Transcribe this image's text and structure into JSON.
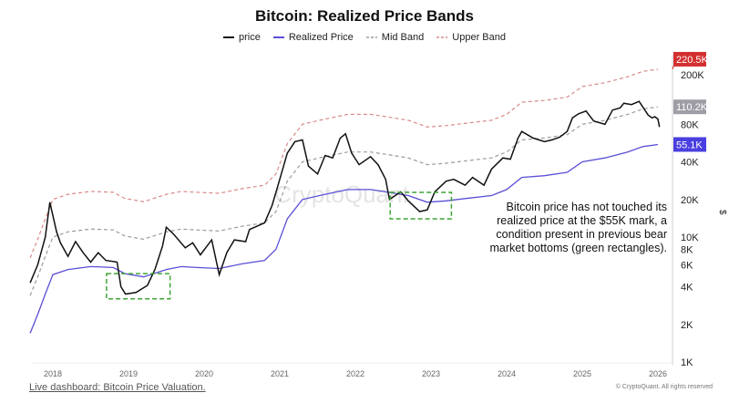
{
  "chart_data": {
    "type": "line",
    "title": "Bitcoin: Realized Price Bands",
    "legend": [
      "price",
      "Realized Price",
      "Mid Band",
      "Upper Band"
    ],
    "legend_position": "top",
    "y_scale": "log",
    "ylabel": "$",
    "ylim": [
      1000,
      260000
    ],
    "xlim": [
      2017.6,
      2026.15
    ],
    "y_ticks": [
      {
        "v": 1000,
        "l": "1K"
      },
      {
        "v": 2000,
        "l": "2K"
      },
      {
        "v": 4000,
        "l": "4K"
      },
      {
        "v": 6000,
        "l": "6K"
      },
      {
        "v": 8000,
        "l": "8K"
      },
      {
        "v": 10000,
        "l": "10K"
      },
      {
        "v": 20000,
        "l": "20K"
      },
      {
        "v": 40000,
        "l": "40K"
      },
      {
        "v": 80000,
        "l": "80K"
      },
      {
        "v": 200000,
        "l": "200K"
      }
    ],
    "x_ticks": [
      "2018",
      "2019",
      "2020",
      "2021",
      "2022",
      "2023",
      "2024",
      "2025",
      "2026"
    ],
    "colors": {
      "price": "#111111",
      "realized": "#5b4fd6",
      "mid": "#a09a9a",
      "upper": "#d98a8a",
      "box": "#3fa535"
    },
    "series": [
      {
        "name": "price",
        "points": [
          [
            2017.7,
            4300
          ],
          [
            2017.8,
            6000
          ],
          [
            2017.9,
            10000
          ],
          [
            2017.96,
            19000
          ],
          [
            2018.05,
            11000
          ],
          [
            2018.1,
            9000
          ],
          [
            2018.2,
            7000
          ],
          [
            2018.3,
            9200
          ],
          [
            2018.4,
            7500
          ],
          [
            2018.5,
            6300
          ],
          [
            2018.6,
            7500
          ],
          [
            2018.7,
            6500
          ],
          [
            2018.85,
            6300
          ],
          [
            2018.9,
            4000
          ],
          [
            2018.96,
            3500
          ],
          [
            2019.1,
            3600
          ],
          [
            2019.25,
            4100
          ],
          [
            2019.35,
            5500
          ],
          [
            2019.45,
            8500
          ],
          [
            2019.5,
            12000
          ],
          [
            2019.6,
            10500
          ],
          [
            2019.75,
            8200
          ],
          [
            2019.85,
            9000
          ],
          [
            2019.95,
            7200
          ],
          [
            2020.1,
            9500
          ],
          [
            2020.2,
            5000
          ],
          [
            2020.3,
            7500
          ],
          [
            2020.4,
            9500
          ],
          [
            2020.55,
            9200
          ],
          [
            2020.6,
            11500
          ],
          [
            2020.8,
            13000
          ],
          [
            2020.9,
            18000
          ],
          [
            2021.0,
            29000
          ],
          [
            2021.1,
            47000
          ],
          [
            2021.2,
            58000
          ],
          [
            2021.3,
            60000
          ],
          [
            2021.38,
            37000
          ],
          [
            2021.5,
            32000
          ],
          [
            2021.6,
            45000
          ],
          [
            2021.7,
            43000
          ],
          [
            2021.8,
            62000
          ],
          [
            2021.87,
            67000
          ],
          [
            2021.95,
            47000
          ],
          [
            2022.05,
            38000
          ],
          [
            2022.2,
            44000
          ],
          [
            2022.3,
            38000
          ],
          [
            2022.4,
            29000
          ],
          [
            2022.45,
            20000
          ],
          [
            2022.6,
            23000
          ],
          [
            2022.7,
            19500
          ],
          [
            2022.85,
            16000
          ],
          [
            2022.95,
            16500
          ],
          [
            2023.05,
            23000
          ],
          [
            2023.2,
            28000
          ],
          [
            2023.3,
            29000
          ],
          [
            2023.45,
            26000
          ],
          [
            2023.55,
            30000
          ],
          [
            2023.7,
            26000
          ],
          [
            2023.8,
            35000
          ],
          [
            2023.95,
            43000
          ],
          [
            2024.05,
            42000
          ],
          [
            2024.15,
            62000
          ],
          [
            2024.2,
            70000
          ],
          [
            2024.35,
            62000
          ],
          [
            2024.5,
            58000
          ],
          [
            2024.6,
            60000
          ],
          [
            2024.7,
            63000
          ],
          [
            2024.8,
            70000
          ],
          [
            2024.87,
            90000
          ],
          [
            2024.95,
            97000
          ],
          [
            2025.05,
            102000
          ],
          [
            2025.15,
            85000
          ],
          [
            2025.3,
            80000
          ],
          [
            2025.4,
            104000
          ],
          [
            2025.5,
            108000
          ],
          [
            2025.55,
            118000
          ],
          [
            2025.65,
            115000
          ],
          [
            2025.75,
            122000
          ],
          [
            2025.8,
            110000
          ],
          [
            2025.87,
            95000
          ],
          [
            2025.92,
            90000
          ],
          [
            2025.96,
            92000
          ],
          [
            2026.0,
            88000
          ],
          [
            2026.02,
            76000
          ]
        ]
      },
      {
        "name": "Realized Price",
        "points": [
          [
            2017.7,
            1700
          ],
          [
            2017.8,
            2400
          ],
          [
            2017.9,
            3500
          ],
          [
            2018.0,
            5000
          ],
          [
            2018.2,
            5500
          ],
          [
            2018.5,
            5800
          ],
          [
            2018.8,
            5700
          ],
          [
            2018.95,
            5100
          ],
          [
            2019.2,
            4800
          ],
          [
            2019.5,
            5500
          ],
          [
            2019.7,
            5800
          ],
          [
            2019.9,
            5700
          ],
          [
            2020.2,
            5600
          ],
          [
            2020.5,
            6100
          ],
          [
            2020.8,
            6500
          ],
          [
            2020.95,
            8000
          ],
          [
            2021.1,
            14000
          ],
          [
            2021.3,
            20000
          ],
          [
            2021.6,
            22000
          ],
          [
            2021.9,
            24000
          ],
          [
            2022.2,
            24000
          ],
          [
            2022.4,
            23000
          ],
          [
            2022.7,
            21500
          ],
          [
            2022.95,
            19000
          ],
          [
            2023.2,
            19500
          ],
          [
            2023.5,
            20500
          ],
          [
            2023.8,
            21500
          ],
          [
            2024.0,
            24000
          ],
          [
            2024.2,
            30000
          ],
          [
            2024.5,
            31000
          ],
          [
            2024.8,
            33000
          ],
          [
            2025.0,
            40000
          ],
          [
            2025.3,
            43000
          ],
          [
            2025.6,
            48000
          ],
          [
            2025.8,
            53000
          ],
          [
            2026.0,
            55100
          ]
        ]
      },
      {
        "name": "Mid Band",
        "last": 110200
      },
      {
        "name": "Upper Band",
        "last": 220500
      }
    ],
    "last_labels": [
      {
        "text": "220.5K",
        "v": 220500,
        "color": "#d32f2f"
      },
      {
        "text": "110.2K",
        "v": 110200,
        "color": "#9e9ea6"
      },
      {
        "text": "55.1K",
        "v": 55100,
        "color": "#4a3fe0"
      }
    ],
    "boxes": [
      {
        "x": [
          2018.71,
          2019.55
        ],
        "y": [
          3200,
          5100
        ]
      },
      {
        "x": [
          2022.46,
          2023.27
        ],
        "y": [
          14000,
          22800
        ]
      }
    ],
    "annotation": "Bitcoin price has not touched its realized price at the $55K mark, a condition present in previous bear market bottoms (green rectangles).",
    "watermark": "CryptoQuant"
  },
  "footer": {
    "link": "Live dashboard: Bitcoin Price Valuation.",
    "copyright": "© CryptoQuant. All rights reserved"
  }
}
